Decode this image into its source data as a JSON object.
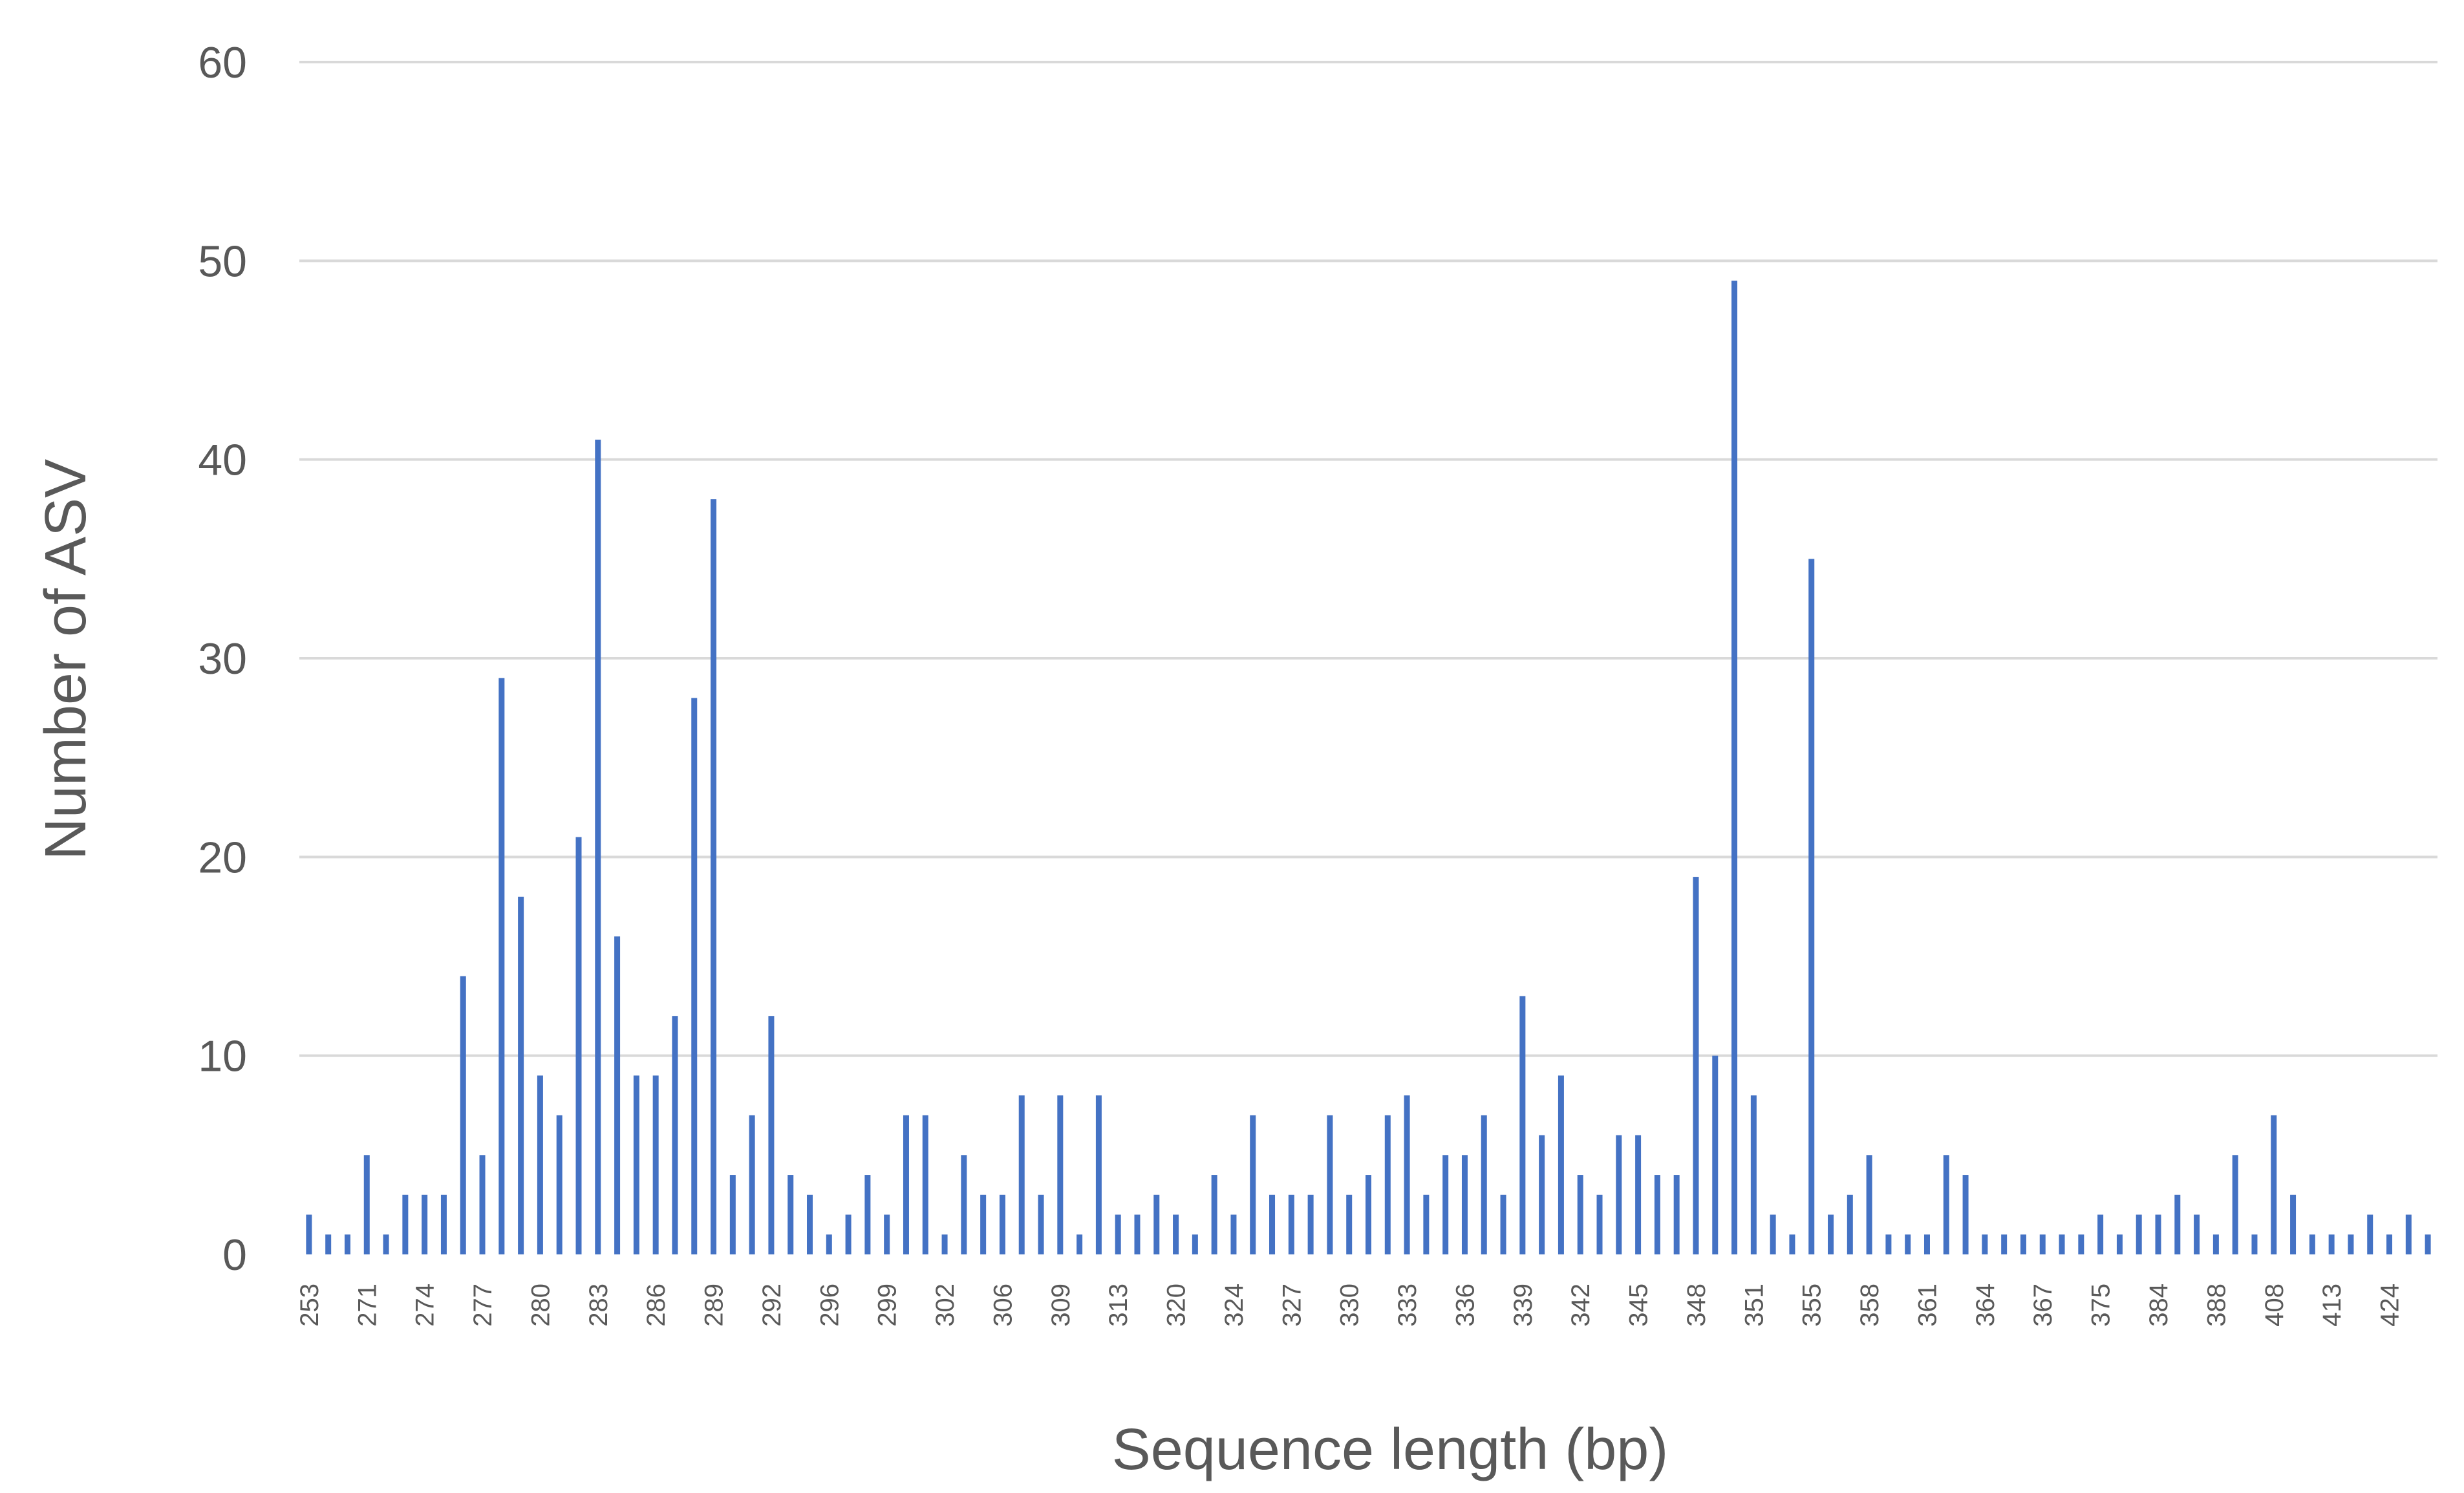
{
  "chart_data": {
    "type": "bar",
    "xlabel": "Sequence length (bp)",
    "ylabel": "Number of ASV",
    "ylim": [
      0,
      60
    ],
    "yticks": [
      0,
      10,
      20,
      30,
      40,
      50,
      60
    ],
    "grid": true,
    "legend": "none",
    "bar_color": "#4472c4",
    "grid_color": "#d9d9d9",
    "text_color": "#595959",
    "categories": [
      "253",
      "",
      "",
      "271",
      "",
      "",
      "274",
      "",
      "",
      "277",
      "",
      "",
      "280",
      "",
      "",
      "283",
      "",
      "",
      "286",
      "",
      "",
      "289",
      "",
      "",
      "292",
      "",
      "",
      "296",
      "",
      "",
      "299",
      "",
      "",
      "302",
      "",
      "",
      "306",
      "",
      "",
      "309",
      "",
      "",
      "313",
      "",
      "",
      "320",
      "",
      "",
      "324",
      "",
      "",
      "327",
      "",
      "",
      "330",
      "",
      "",
      "333",
      "",
      "",
      "336",
      "",
      "",
      "339",
      "",
      "",
      "342",
      "",
      "",
      "345",
      "",
      "",
      "348",
      "",
      "",
      "351",
      "",
      "",
      "355",
      "",
      "",
      "358",
      "",
      "",
      "361",
      "",
      "",
      "364",
      "",
      "",
      "367",
      "",
      "",
      "375",
      "",
      "",
      "384",
      "",
      "",
      "388",
      "",
      "",
      "408",
      "",
      "",
      "413",
      "",
      "",
      "424",
      "",
      ""
    ],
    "values": [
      2,
      1,
      1,
      5,
      1,
      3,
      3,
      3,
      14,
      5,
      29,
      18,
      9,
      7,
      21,
      41,
      16,
      9,
      9,
      12,
      28,
      38,
      4,
      7,
      12,
      4,
      3,
      1,
      2,
      4,
      2,
      7,
      7,
      1,
      5,
      3,
      3,
      8,
      3,
      8,
      1,
      8,
      2,
      2,
      3,
      2,
      1,
      4,
      2,
      7,
      3,
      3,
      3,
      7,
      3,
      4,
      7,
      8,
      3,
      5,
      5,
      7,
      3,
      13,
      6,
      9,
      4,
      3,
      6,
      6,
      4,
      4,
      19,
      10,
      49,
      8,
      2,
      1,
      35,
      2,
      3,
      5,
      1,
      1,
      1,
      5,
      4,
      1,
      1,
      1,
      1,
      1,
      1,
      2,
      1,
      2,
      2,
      3,
      2,
      1,
      5,
      1,
      7,
      3,
      1,
      1,
      1,
      2,
      1,
      2,
      1
    ]
  }
}
